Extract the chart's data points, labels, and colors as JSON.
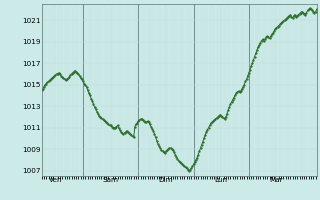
{
  "background_color": "#cceae8",
  "plot_bg_color": "#cceae8",
  "line_color": "#2d6e2d",
  "marker_color": "#2d6e2d",
  "grid_color_v": "#b8d8d5",
  "grid_color_h": "#c0dbd8",
  "ylim": [
    1006.5,
    1022.5
  ],
  "yticks": [
    1007,
    1009,
    1011,
    1013,
    1015,
    1017,
    1019,
    1021
  ],
  "ytick_fontsize": 5.2,
  "xtick_labels": [
    "Ven",
    "Sam",
    "Dim",
    "Lun",
    "Mar"
  ],
  "xtick_positions": [
    12,
    60,
    108,
    156,
    204
  ],
  "vline_positions": [
    36,
    84,
    132,
    180
  ],
  "pressure_data": [
    1014.5,
    1014.6,
    1014.8,
    1015.0,
    1015.1,
    1015.2,
    1015.3,
    1015.4,
    1015.5,
    1015.6,
    1015.7,
    1015.8,
    1015.9,
    1016.0,
    1016.0,
    1016.1,
    1016.0,
    1015.8,
    1015.7,
    1015.6,
    1015.5,
    1015.4,
    1015.5,
    1015.6,
    1015.7,
    1015.9,
    1016.0,
    1016.1,
    1016.2,
    1016.3,
    1016.2,
    1016.1,
    1016.0,
    1015.8,
    1015.6,
    1015.5,
    1015.3,
    1015.1,
    1015.0,
    1014.8,
    1014.5,
    1014.2,
    1014.0,
    1013.7,
    1013.5,
    1013.2,
    1012.9,
    1012.7,
    1012.5,
    1012.3,
    1012.1,
    1012.0,
    1011.9,
    1011.8,
    1011.7,
    1011.6,
    1011.5,
    1011.4,
    1011.3,
    1011.2,
    1011.2,
    1011.1,
    1011.0,
    1011.0,
    1011.0,
    1011.1,
    1011.2,
    1011.0,
    1010.8,
    1010.6,
    1010.5,
    1010.4,
    1010.5,
    1010.6,
    1010.7,
    1010.6,
    1010.5,
    1010.4,
    1010.3,
    1010.2,
    1010.1,
    1011.1,
    1011.3,
    1011.4,
    1011.6,
    1011.7,
    1011.8,
    1011.8,
    1011.7,
    1011.6,
    1011.5,
    1011.5,
    1011.6,
    1011.5,
    1011.3,
    1011.1,
    1010.9,
    1010.7,
    1010.4,
    1010.1,
    1009.8,
    1009.5,
    1009.3,
    1009.1,
    1008.9,
    1008.8,
    1008.7,
    1008.6,
    1008.8,
    1008.9,
    1009.0,
    1009.1,
    1009.1,
    1009.0,
    1008.9,
    1008.7,
    1008.5,
    1008.3,
    1008.1,
    1007.9,
    1007.8,
    1007.7,
    1007.6,
    1007.5,
    1007.4,
    1007.3,
    1007.2,
    1007.1,
    1007.0,
    1007.1,
    1007.2,
    1007.4,
    1007.6,
    1007.8,
    1008.0,
    1008.2,
    1008.5,
    1008.8,
    1009.1,
    1009.4,
    1009.7,
    1010.0,
    1010.3,
    1010.6,
    1010.8,
    1011.0,
    1011.2,
    1011.4,
    1011.5,
    1011.6,
    1011.7,
    1011.8,
    1011.9,
    1012.0,
    1012.1,
    1012.2,
    1012.1,
    1012.0,
    1011.9,
    1011.8,
    1012.0,
    1012.3,
    1012.6,
    1012.9,
    1013.2,
    1013.4,
    1013.6,
    1013.8,
    1014.0,
    1014.2,
    1014.3,
    1014.4,
    1014.3,
    1014.4,
    1014.6,
    1014.8,
    1015.0,
    1015.3,
    1015.5,
    1015.8,
    1016.1,
    1016.4,
    1016.7,
    1017.0,
    1017.3,
    1017.6,
    1017.9,
    1018.2,
    1018.5,
    1018.7,
    1018.9,
    1019.1,
    1019.2,
    1019.1,
    1019.2,
    1019.4,
    1019.5,
    1019.4,
    1019.3,
    1019.5,
    1019.7,
    1019.8,
    1020.0,
    1020.2,
    1020.3,
    1020.4,
    1020.5,
    1020.6,
    1020.7,
    1020.8,
    1020.9,
    1021.0,
    1021.1,
    1021.2,
    1021.3,
    1021.4,
    1021.5,
    1021.3,
    1021.2,
    1021.4,
    1021.5,
    1021.3,
    1021.4,
    1021.5,
    1021.6,
    1021.7,
    1021.8,
    1021.7,
    1021.6,
    1021.5,
    1021.7,
    1021.9,
    1022.0,
    1022.1,
    1022.0,
    1021.9,
    1021.8,
    1021.7,
    1021.8,
    1022.0
  ]
}
